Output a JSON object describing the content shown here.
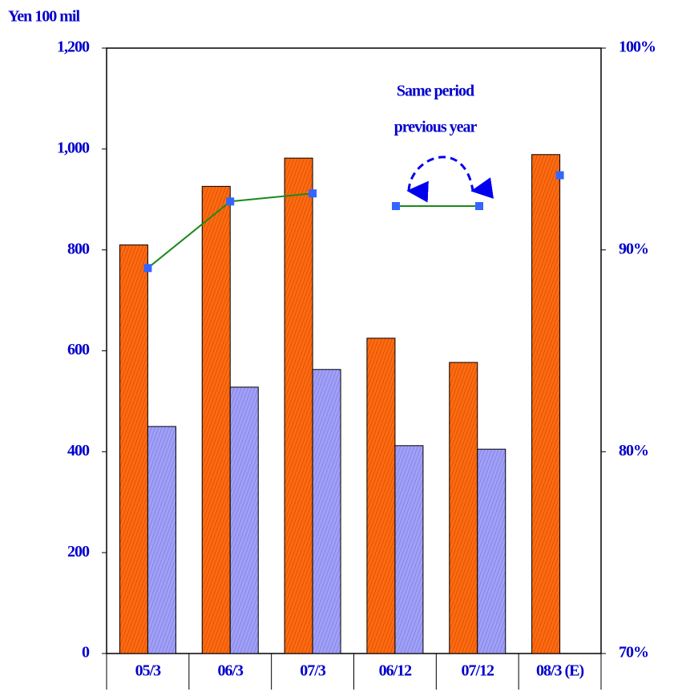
{
  "chart_data": {
    "type": "bar",
    "y_axis_label": "Yen 100 mil",
    "annotation": [
      "Same period",
      "previous year"
    ],
    "categories": [
      "05/3",
      "06/3",
      "07/3",
      "06/12",
      "07/12",
      "08/3 (E)"
    ],
    "series": [
      {
        "color": "#ff6a10",
        "values": [
          810,
          926,
          982,
          625,
          577,
          989
        ]
      },
      {
        "color": "#a0a0f8",
        "values": [
          450,
          528,
          563,
          412,
          405,
          null
        ]
      },
      {
        "type": "line",
        "axis": "y2",
        "color": "#1a8a1a",
        "marker_color": "#3366ff",
        "values": [
          89.1,
          92.4,
          92.8,
          null,
          null,
          93.7
        ]
      }
    ],
    "ylim": [
      0,
      1200
    ],
    "yticks": [
      0,
      200,
      400,
      600,
      800,
      {
        "value": 1000,
        "label": "1,000"
      },
      {
        "value": 1200,
        "label": "1,200"
      }
    ],
    "y2lim": [
      70,
      100
    ],
    "y2ticks": [
      {
        "value": 70,
        "label": "70%"
      },
      {
        "value": 80,
        "label": "80%"
      },
      {
        "value": 90,
        "label": "90%"
      },
      {
        "value": 100,
        "label": "100%"
      }
    ]
  }
}
